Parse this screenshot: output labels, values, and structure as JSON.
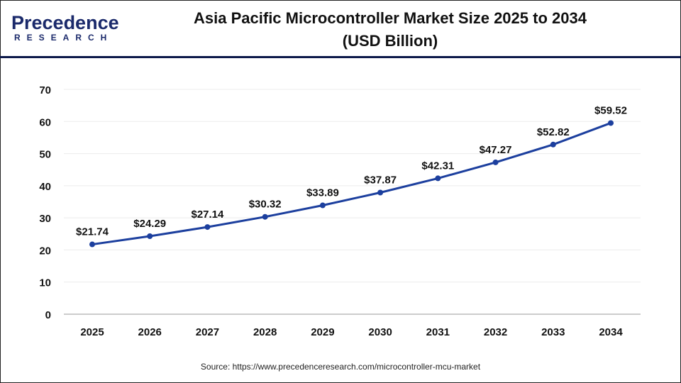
{
  "logo": {
    "line1": "Precedence",
    "line2": "RESEARCH"
  },
  "title_line1": "Asia Pacific Microcontroller Market Size 2025 to 2034",
  "title_line2": "(USD Billion)",
  "source": "Source: https://www.precedenceresearch.com/microcontroller-mcu-market",
  "colors": {
    "line": "#1c3f9e",
    "header_rule": "#0d1a4a",
    "grid": "#ececec"
  },
  "chart_data": {
    "type": "line",
    "title": "Asia Pacific Microcontroller Market Size 2025 to 2034 (USD Billion)",
    "xlabel": "",
    "ylabel": "",
    "categories": [
      "2025",
      "2026",
      "2027",
      "2028",
      "2029",
      "2030",
      "2031",
      "2032",
      "2033",
      "2034"
    ],
    "values": [
      21.74,
      24.29,
      27.14,
      30.32,
      33.89,
      37.87,
      42.31,
      47.27,
      52.82,
      59.52
    ],
    "data_labels": [
      "$21.74",
      "$24.29",
      "$27.14",
      "$30.32",
      "$33.89",
      "$37.87",
      "$42.31",
      "$47.27",
      "$52.82",
      "$59.52"
    ],
    "ylim": [
      0,
      70
    ],
    "yticks": [
      0,
      10,
      20,
      30,
      40,
      50,
      60,
      70
    ],
    "grid": true,
    "legend": "none"
  }
}
